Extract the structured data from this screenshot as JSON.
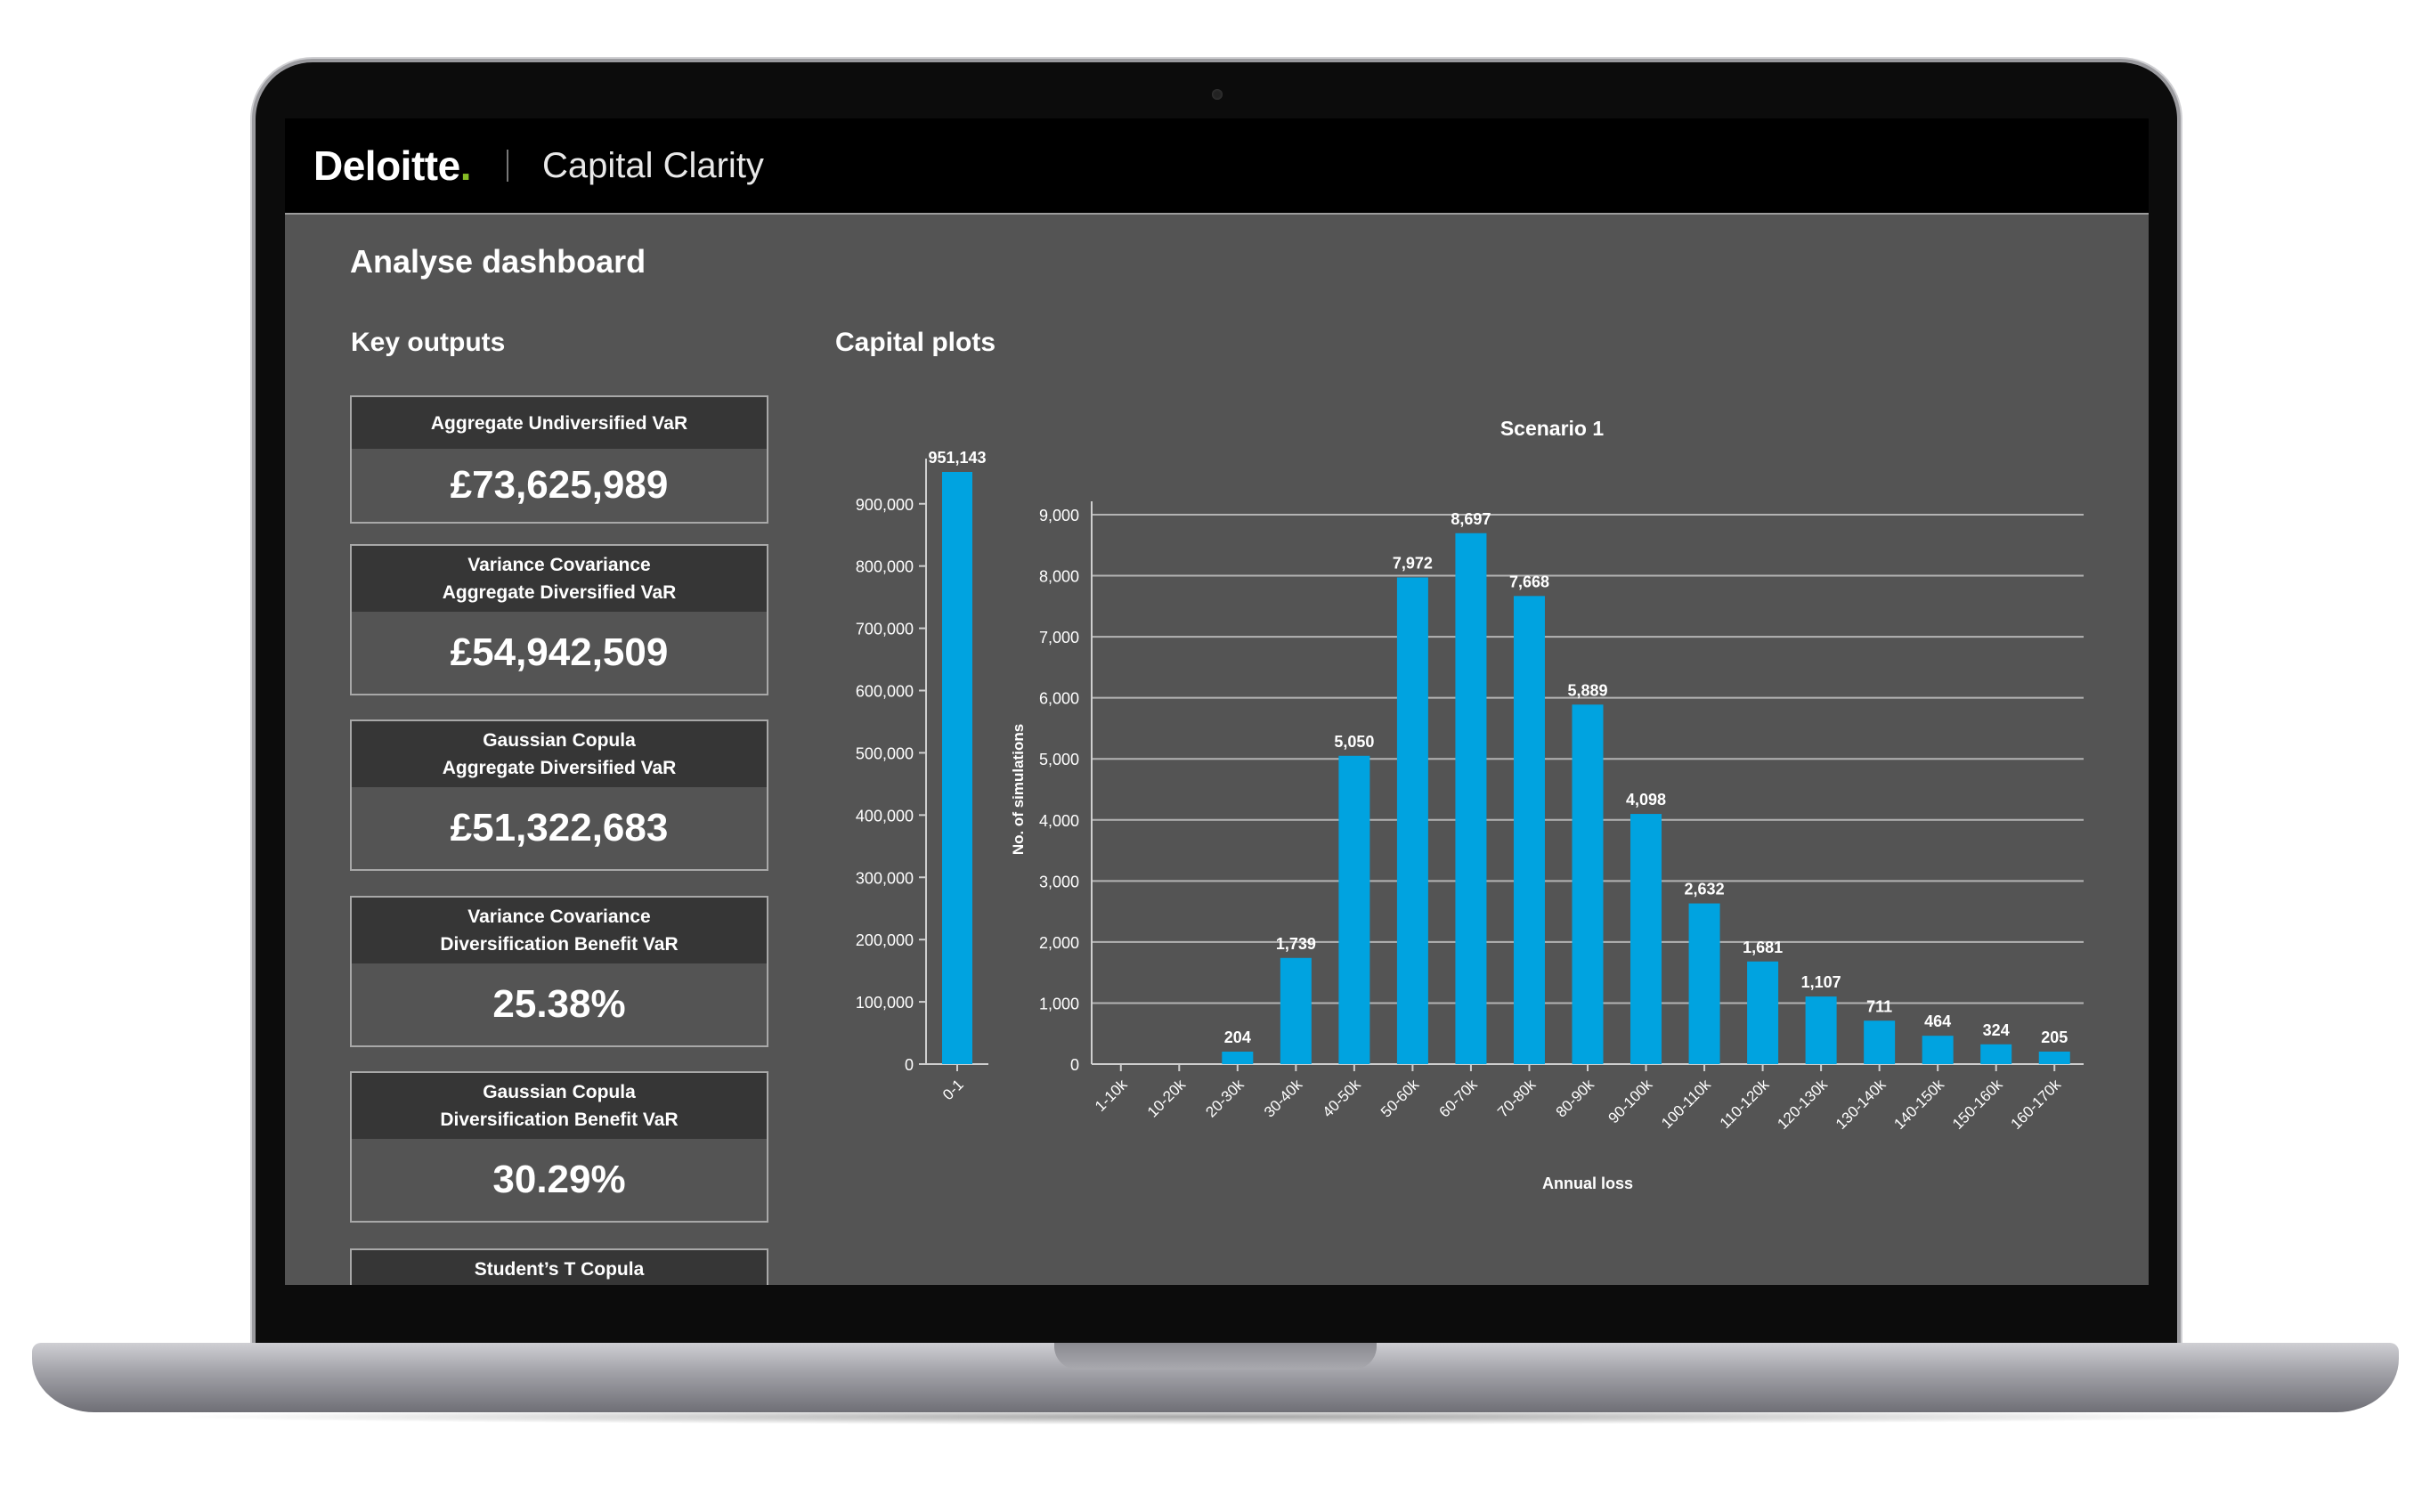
{
  "header": {
    "brand": "Deloitte",
    "brand_dot": ".",
    "app_name": "Capital Clarity"
  },
  "page": {
    "title": "Analyse dashboard"
  },
  "sections": {
    "key_outputs": "Key outputs",
    "capital_plots": "Capital plots"
  },
  "key_outputs": [
    {
      "line1": "Aggregate Undiversified VaR",
      "line2": "",
      "value": "£73,625,989"
    },
    {
      "line1": "Variance Covariance",
      "line2": "Aggregate Diversified VaR",
      "value": "£54,942,509"
    },
    {
      "line1": "Gaussian Copula",
      "line2": "Aggregate Diversified VaR",
      "value": "£51,322,683"
    },
    {
      "line1": "Variance Covariance",
      "line2": "Diversification Benefit VaR",
      "value": "25.38%"
    },
    {
      "line1": "Gaussian Copula",
      "line2": "Diversification Benefit VaR",
      "value": "30.29%"
    },
    {
      "line1": "Student’s T Copula",
      "line2": "",
      "value": ""
    }
  ],
  "colors": {
    "bar": "#00a3e0",
    "background": "#545454",
    "card_head": "#363636",
    "brand_accent": "#86bc25"
  },
  "chart_data": [
    {
      "type": "bar",
      "categories": [
        "0-1"
      ],
      "values": [
        951143
      ],
      "data_labels": [
        "951,143"
      ],
      "ylim": [
        0,
        951143
      ],
      "yticks": [
        0,
        100000,
        200000,
        300000,
        400000,
        500000,
        600000,
        700000,
        800000,
        900000
      ],
      "ytick_labels": [
        "0",
        "100,000",
        "200,000",
        "300,000",
        "400,000",
        "500,000",
        "600,000",
        "700,000",
        "800,000",
        "900,000"
      ],
      "grid": false
    },
    {
      "type": "bar",
      "title": "Scenario 1",
      "xlabel": "Annual loss",
      "ylabel": "No. of simulations",
      "categories": [
        "1-10k",
        "10-20k",
        "20-30k",
        "30-40k",
        "40-50k",
        "50-60k",
        "60-70k",
        "70-80k",
        "80-90k",
        "90-100k",
        "100-110k",
        "110-120k",
        "120-130k",
        "130-140k",
        "140-150k",
        "150-160k",
        "160-170k"
      ],
      "values": [
        0,
        0,
        204,
        1739,
        5050,
        7972,
        8697,
        7668,
        5889,
        4098,
        2632,
        1681,
        1107,
        711,
        464,
        324,
        205
      ],
      "data_labels": [
        "",
        "",
        "204",
        "1,739",
        "5,050",
        "7,972",
        "8,697",
        "7,668",
        "5,889",
        "4,098",
        "2,632",
        "1,681",
        "1,107",
        "711",
        "464",
        "324",
        "205"
      ],
      "ylim": [
        0,
        9000
      ],
      "yticks": [
        0,
        1000,
        2000,
        3000,
        4000,
        5000,
        6000,
        7000,
        8000,
        9000
      ],
      "ytick_labels": [
        "0",
        "1,000",
        "2,000",
        "3,000",
        "4,000",
        "5,000",
        "6,000",
        "7,000",
        "8,000",
        "9,000"
      ],
      "grid": true
    }
  ]
}
